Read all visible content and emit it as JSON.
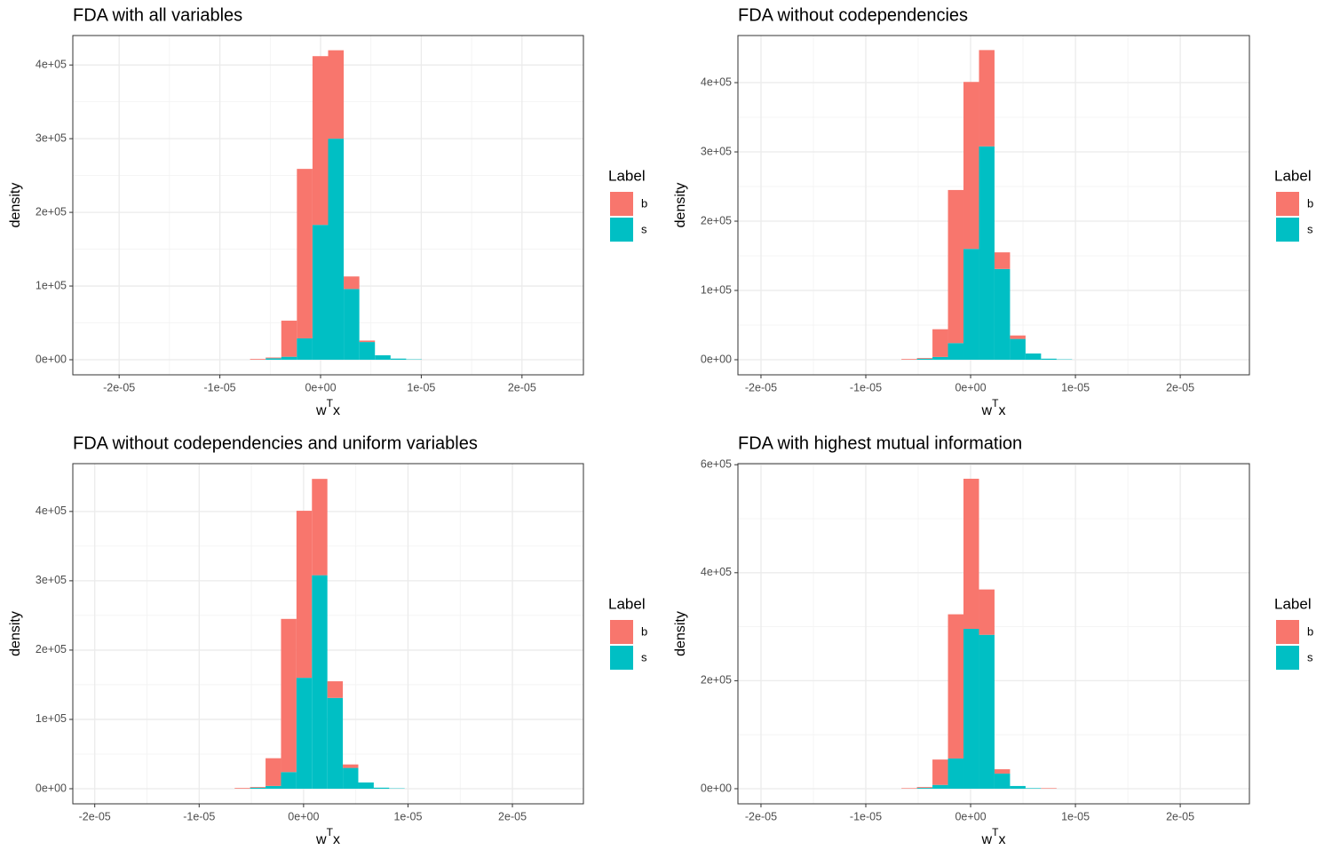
{
  "chart_data": [
    {
      "type": "histogram",
      "title": "FDA with all variables",
      "xlabel": [
        "w",
        "T",
        "x"
      ],
      "ylabel": "density",
      "legend_title": "Label",
      "legend": "right",
      "grid": true,
      "bins": [
        -7e-06,
        -5.45e-06,
        -3.9e-06,
        -2.35e-06,
        -8e-07,
        7.5e-07,
        2.3e-06,
        3.85e-06,
        5.4e-06,
        6.95e-06,
        8.5e-06,
        1.005e-05
      ],
      "series": [
        {
          "name": "b",
          "color": "#F8766D",
          "values": [
            1000,
            1000,
            49000,
            230000,
            229000,
            120000,
            17000,
            2000,
            0,
            0,
            0
          ]
        },
        {
          "name": "s",
          "color": "#00BFC4",
          "values": [
            0,
            2000,
            4000,
            29000,
            183000,
            300000,
            96000,
            24000,
            6000,
            1500,
            500
          ]
        }
      ],
      "xlim": [
        -2.46e-05,
        2.61e-05
      ],
      "ylim": [
        -20500,
        440000
      ],
      "xticks": [
        {
          "value": -2e-05,
          "label": "-2e-05"
        },
        {
          "value": -1e-05,
          "label": "-1e-05"
        },
        {
          "value": 0,
          "label": "0e+00"
        },
        {
          "value": 1e-05,
          "label": "1e-05"
        },
        {
          "value": 2e-05,
          "label": "2e-05"
        }
      ],
      "yticks": [
        {
          "value": 0,
          "label": "0e+00"
        },
        {
          "value": 100000,
          "label": "1e+05"
        },
        {
          "value": 200000,
          "label": "2e+05"
        },
        {
          "value": 300000,
          "label": "3e+05"
        },
        {
          "value": 400000,
          "label": "4e+05"
        }
      ]
    },
    {
      "type": "histogram",
      "title": "FDA without codependencies",
      "xlabel": [
        "w",
        "T",
        "x"
      ],
      "ylabel": "density",
      "legend_title": "Label",
      "legend": "right",
      "grid": true,
      "bins": [
        -6.6e-06,
        -5.12e-06,
        -3.64e-06,
        -2.16e-06,
        -6.8e-07,
        8e-07,
        2.28e-06,
        3.76e-06,
        5.24e-06,
        6.72e-06,
        8.2e-06,
        9.68e-06
      ],
      "series": [
        {
          "name": "b",
          "color": "#F8766D",
          "values": [
            1000,
            1000,
            40000,
            221000,
            241000,
            139000,
            24000,
            5000,
            0,
            0,
            0
          ]
        },
        {
          "name": "s",
          "color": "#00BFC4",
          "values": [
            0,
            1500,
            4000,
            24000,
            160000,
            308000,
            131000,
            30000,
            9000,
            1500,
            500
          ]
        }
      ],
      "xlim": [
        -2.22e-05,
        2.66e-05
      ],
      "ylim": [
        -21800,
        468000
      ],
      "xticks": [
        {
          "value": -2e-05,
          "label": "-2e-05"
        },
        {
          "value": -1e-05,
          "label": "-1e-05"
        },
        {
          "value": 0,
          "label": "0e+00"
        },
        {
          "value": 1e-05,
          "label": "1e-05"
        },
        {
          "value": 2e-05,
          "label": "2e-05"
        }
      ],
      "yticks": [
        {
          "value": 0,
          "label": "0e+00"
        },
        {
          "value": 100000,
          "label": "1e+05"
        },
        {
          "value": 200000,
          "label": "2e+05"
        },
        {
          "value": 300000,
          "label": "3e+05"
        },
        {
          "value": 400000,
          "label": "4e+05"
        }
      ]
    },
    {
      "type": "histogram",
      "title": "FDA without codependencies and uniform variables",
      "xlabel": [
        "w",
        "T",
        "x"
      ],
      "ylabel": "density",
      "legend_title": "Label",
      "legend": "right",
      "grid": true,
      "bins": [
        -6.6e-06,
        -5.12e-06,
        -3.64e-06,
        -2.16e-06,
        -6.8e-07,
        8e-07,
        2.28e-06,
        3.76e-06,
        5.24e-06,
        6.72e-06,
        8.2e-06,
        9.68e-06
      ],
      "series": [
        {
          "name": "b",
          "color": "#F8766D",
          "values": [
            1000,
            1000,
            40000,
            221000,
            241000,
            139000,
            24000,
            5000,
            0,
            0,
            0
          ]
        },
        {
          "name": "s",
          "color": "#00BFC4",
          "values": [
            0,
            1500,
            4000,
            24000,
            160000,
            308000,
            131000,
            30000,
            9000,
            1500,
            500
          ]
        }
      ],
      "xlim": [
        -2.21e-05,
        2.68e-05
      ],
      "ylim": [
        -21800,
        469000
      ],
      "xticks": [
        {
          "value": -2e-05,
          "label": "-2e-05"
        },
        {
          "value": -1e-05,
          "label": "-1e-05"
        },
        {
          "value": 0,
          "label": "0e+00"
        },
        {
          "value": 1e-05,
          "label": "1e-05"
        },
        {
          "value": 2e-05,
          "label": "2e-05"
        }
      ],
      "yticks": [
        {
          "value": 0,
          "label": "0e+00"
        },
        {
          "value": 100000,
          "label": "1e+05"
        },
        {
          "value": 200000,
          "label": "2e+05"
        },
        {
          "value": 300000,
          "label": "3e+05"
        },
        {
          "value": 400000,
          "label": "4e+05"
        }
      ]
    },
    {
      "type": "histogram",
      "title": "FDA with highest mutual information",
      "xlabel": [
        "w",
        "T",
        "x"
      ],
      "ylabel": "density",
      "legend_title": "Label",
      "legend": "right",
      "grid": true,
      "bins": [
        -6.6e-06,
        -5.12e-06,
        -3.64e-06,
        -2.16e-06,
        -6.8e-07,
        8e-07,
        2.28e-06,
        3.76e-06,
        5.24e-06,
        6.72e-06,
        8.2e-06,
        9.68e-06
      ],
      "series": [
        {
          "name": "b",
          "color": "#F8766D",
          "values": [
            1000,
            1500,
            47000,
            267000,
            278000,
            84000,
            8000,
            0,
            0,
            1000,
            0
          ]
        },
        {
          "name": "s",
          "color": "#00BFC4",
          "values": [
            0,
            1500,
            7000,
            56000,
            296000,
            285000,
            28000,
            5000,
            1000,
            0,
            0
          ]
        }
      ],
      "xlim": [
        -2.22e-05,
        2.66e-05
      ],
      "ylim": [
        -28000,
        602000
      ],
      "xticks": [
        {
          "value": -2e-05,
          "label": "-2e-05"
        },
        {
          "value": -1e-05,
          "label": "-1e-05"
        },
        {
          "value": 0,
          "label": "0e+00"
        },
        {
          "value": 1e-05,
          "label": "1e-05"
        },
        {
          "value": 2e-05,
          "label": "2e-05"
        }
      ],
      "yticks": [
        {
          "value": 0,
          "label": "0e+00"
        },
        {
          "value": 200000,
          "label": "2e+05"
        },
        {
          "value": 400000,
          "label": "4e+05"
        },
        {
          "value": 600000,
          "label": "6e+05"
        }
      ]
    }
  ]
}
